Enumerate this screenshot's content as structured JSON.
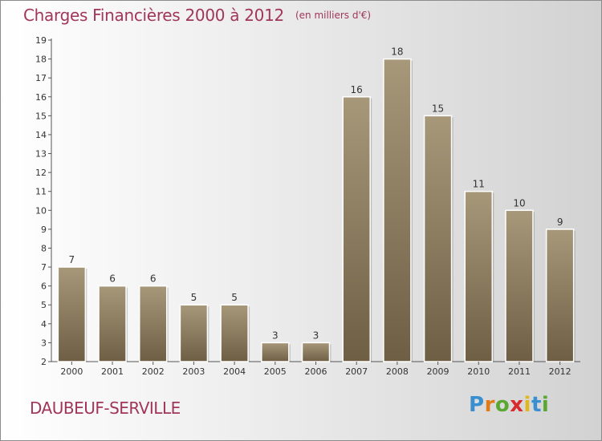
{
  "title": "Charges Financières 2000 à 2012",
  "subtitle": "(en milliers d'€)",
  "commune": "DAUBEUF-SERVILLE",
  "logo": {
    "text": "Proxiti",
    "letters": [
      "P",
      "r",
      "o",
      "x",
      "i",
      "t",
      "i"
    ],
    "colors": [
      "#3a8fd0",
      "#e07b1c",
      "#5aa832",
      "#d8292f",
      "#e0b81c",
      "#3a8fd0",
      "#5aa832"
    ]
  },
  "colors": {
    "title": "#a0365a",
    "bar_light": "#a8987a",
    "bar_dark": "#6e5e44",
    "axis": "#555555"
  },
  "chart_data": {
    "type": "bar",
    "categories": [
      "2000",
      "2001",
      "2002",
      "2003",
      "2004",
      "2005",
      "2006",
      "2007",
      "2008",
      "2009",
      "2010",
      "2011",
      "2012"
    ],
    "values": [
      7,
      6,
      6,
      5,
      5,
      3,
      3,
      16,
      18,
      15,
      11,
      10,
      9
    ],
    "data_labels": [
      "7",
      "6",
      "6",
      "5",
      "5",
      "3",
      "3",
      "16",
      "18",
      "15",
      "11",
      "10",
      "9"
    ],
    "y_ticks": [
      2,
      3,
      4,
      5,
      6,
      7,
      8,
      9,
      10,
      11,
      12,
      13,
      14,
      15,
      16,
      17,
      18,
      19
    ],
    "ylim": [
      2,
      19
    ],
    "grid": false,
    "xlabel": "",
    "ylabel": ""
  }
}
